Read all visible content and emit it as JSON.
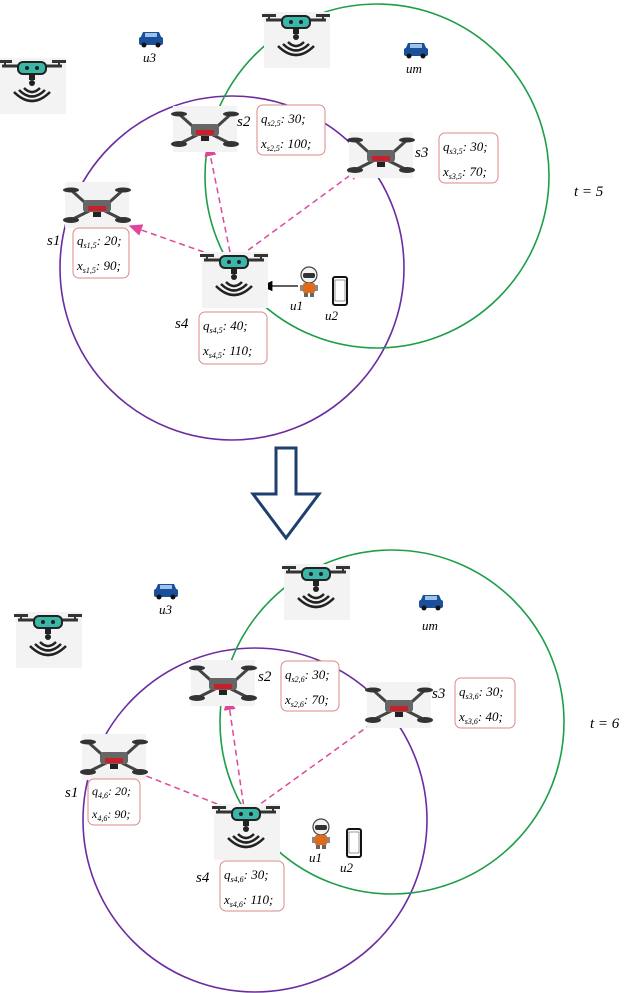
{
  "colors": {
    "purple_circle": "#6a2ca0",
    "green_circle": "#1f9e4a",
    "pink_arrow": "#e0479a",
    "box_border": "#d98a8a",
    "big_arrow": "#1f3f6e"
  },
  "icons": [
    "drone-icon",
    "drone-signal-icon",
    "car-icon",
    "robot-user-icon",
    "phone-icon",
    "down-arrow-icon"
  ],
  "panels": [
    {
      "time_label": "t = 5",
      "servers": [
        {
          "name": "s1",
          "q": "q",
          "q_sub": "s1,5",
          "q_val": ": 20;",
          "x": "x",
          "x_sub": "s1,5",
          "x_val": ": 90;"
        },
        {
          "name": "s2",
          "q": "q",
          "q_sub": "s2,5",
          "q_val": ": 30;",
          "x": "x",
          "x_sub": "s2,5",
          "x_val": ": 100;"
        },
        {
          "name": "s3",
          "q": "q",
          "q_sub": "s3,5",
          "q_val": ": 30;",
          "x": "x",
          "x_sub": "s3,5",
          "x_val": ": 70;"
        },
        {
          "name": "s4",
          "q": "q",
          "q_sub": "s4,5",
          "q_val": ": 40;",
          "x": "x",
          "x_sub": "s4,5",
          "x_val": ": 110;"
        }
      ],
      "users": [
        "u1",
        "u2",
        "u3",
        "um"
      ]
    },
    {
      "time_label": "t = 6",
      "servers": [
        {
          "name": "s1",
          "q": "q",
          "q_sub": "4,6",
          "q_val": ": 20;",
          "x": "x",
          "x_sub": "4,6",
          "x_val": ": 90;"
        },
        {
          "name": "s2",
          "q": "q",
          "q_sub": "s2,6",
          "q_val": ": 30;",
          "x": "x",
          "x_sub": "s2,6",
          "x_val": ": 70;"
        },
        {
          "name": "s3",
          "q": "q",
          "q_sub": "s3,6",
          "q_val": ": 30;",
          "x": "x",
          "x_sub": "s3,6",
          "x_val": ": 40;"
        },
        {
          "name": "s4",
          "q": "q",
          "q_sub": "s4,6",
          "q_val": ": 30;",
          "x": "x",
          "x_sub": "s4,6",
          "x_val": ": 110;"
        }
      ],
      "users": [
        "u1",
        "u2",
        "u3",
        "um"
      ]
    }
  ]
}
